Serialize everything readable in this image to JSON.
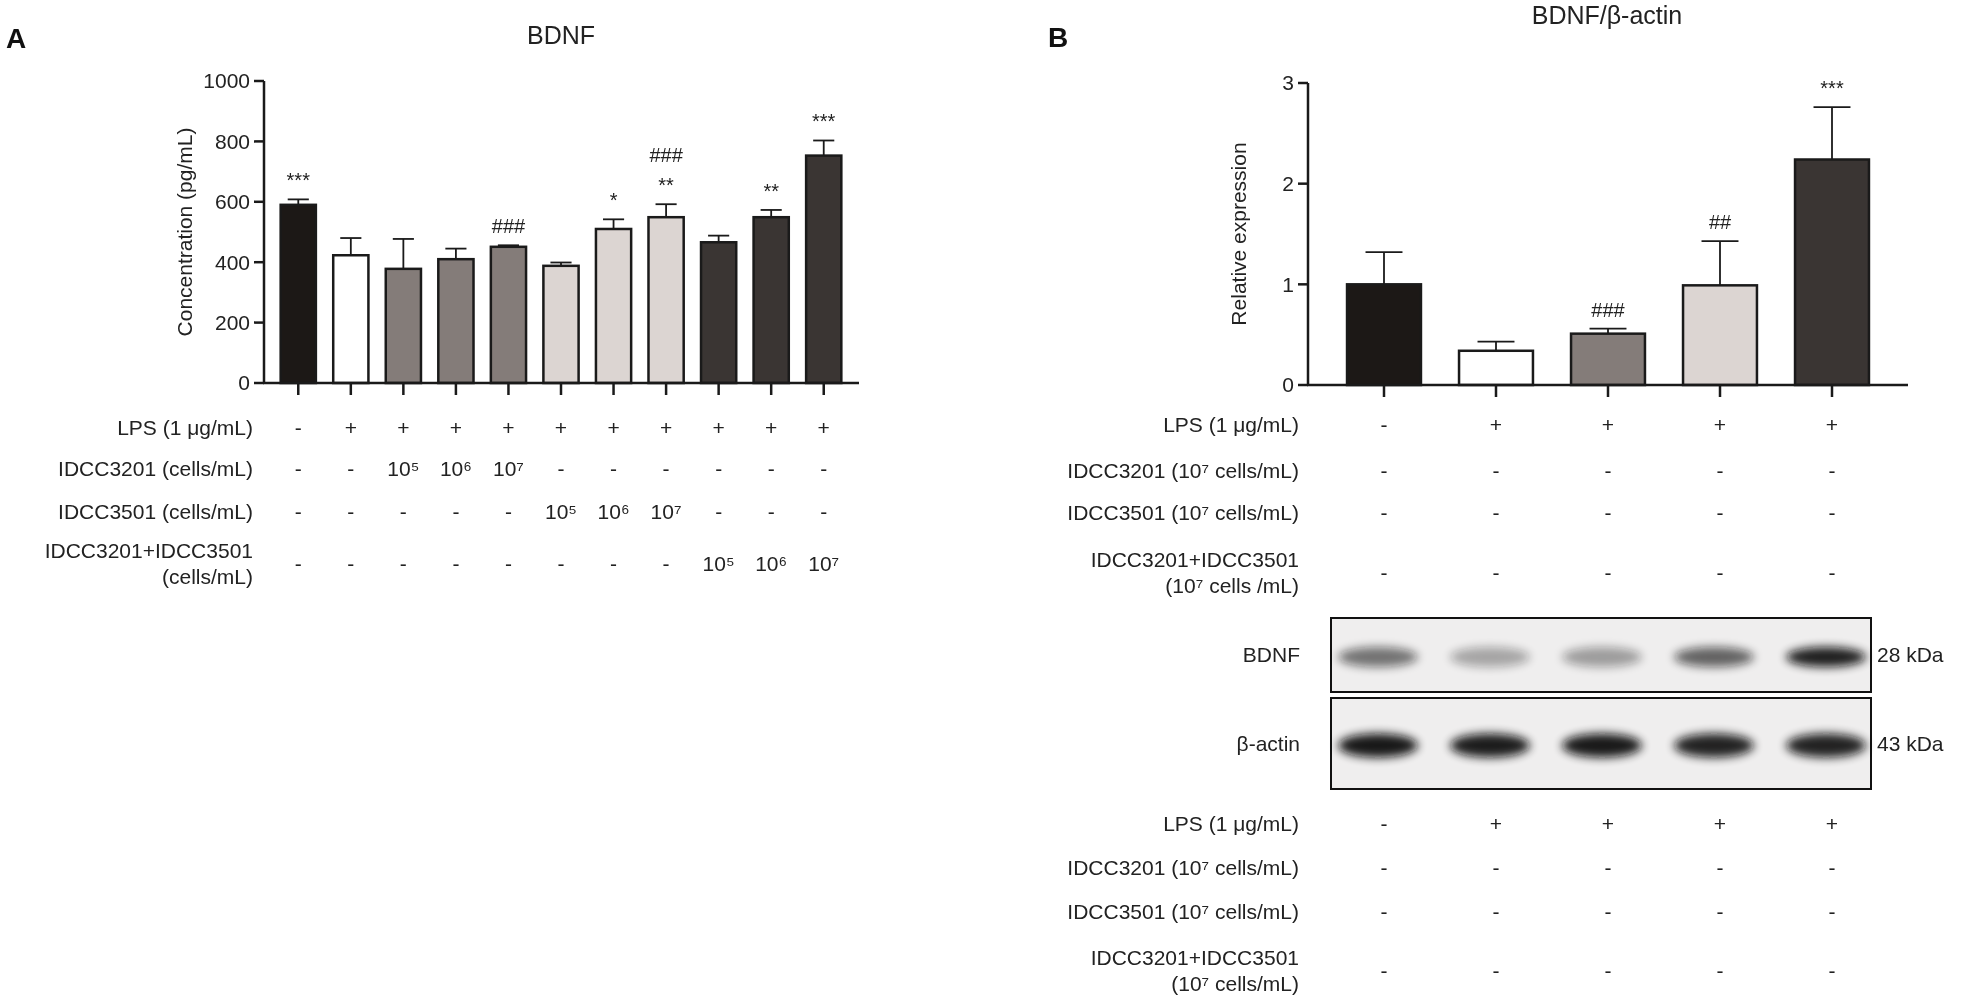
{
  "chart_data": [
    {
      "type": "bar",
      "title": "BDNF",
      "ylabel": "Concentration (pg/mL)",
      "categories": [
        null,
        null,
        null,
        null,
        null,
        null,
        null,
        null,
        null,
        null,
        null
      ],
      "values": [
        590,
        423,
        378,
        410,
        451,
        388,
        510,
        549,
        466,
        549,
        753
      ],
      "errors": [
        18,
        57,
        99,
        35,
        5,
        11,
        32,
        43,
        22,
        24,
        50
      ],
      "colors": [
        "#1c1816",
        "#ffffff",
        "#847c79",
        "#847c79",
        "#847c79",
        "#dcd5d2",
        "#dcd5d2",
        "#dcd5d2",
        "#3a3533",
        "#3a3533",
        "#3a3533"
      ],
      "ylim": [
        0,
        1000
      ],
      "yticks": [
        0,
        200,
        400,
        600,
        800,
        1000
      ],
      "value_labels": [
        "***",
        null,
        null,
        null,
        "###",
        null,
        "*",
        "###\n**",
        null,
        "**",
        "***"
      ],
      "annotations": [
        "A",
        "LPS (1 μg/mL)",
        "-",
        "+",
        "+",
        "+",
        "+",
        "+",
        "+",
        "+",
        "+",
        "+",
        "+",
        "IDCC3201 (cells/mL)",
        "-",
        "-",
        "10⁵",
        "10⁶",
        "10⁷",
        "-",
        "-",
        "-",
        "-",
        "-",
        "-",
        "IDCC3501 (cells/mL)",
        "-",
        "-",
        "-",
        "-",
        "-",
        "10⁵",
        "10⁶",
        "10⁷",
        "-",
        "-",
        "-",
        "IDCC3201+IDCC3501\n(cells/mL)",
        "-",
        "-",
        "-",
        "-",
        "-",
        "-",
        "-",
        "-",
        "10⁵",
        "10⁶",
        "10⁷"
      ]
    },
    {
      "type": "bar",
      "title": "BDNF/β-actin",
      "ylabel": "Relative expression",
      "categories": [
        null,
        null,
        null,
        null,
        null
      ],
      "values": [
        1.0,
        0.34,
        0.51,
        0.99,
        2.24
      ],
      "errors": [
        0.32,
        0.09,
        0.05,
        0.44,
        0.52
      ],
      "colors": [
        "#1c1816",
        "#ffffff",
        "#847c79",
        "#dcd5d2",
        "#3a3533"
      ],
      "ylim": [
        0,
        3
      ],
      "yticks": [
        0,
        1,
        2,
        3
      ],
      "value_labels": [
        null,
        null,
        "###",
        "##",
        "***"
      ],
      "annotations": [
        "B",
        "LPS (1 μg/mL)",
        "-",
        "+",
        "+",
        "+",
        "+",
        "IDCC3201 (10⁷ cells/mL)",
        "-",
        "-",
        "-",
        "-",
        "-",
        "IDCC3501 (10⁷ cells/mL)",
        "-",
        "-",
        "-",
        "-",
        "-",
        "IDCC3201+IDCC3501\n(10⁷ cells /mL)",
        "-",
        "-",
        "-",
        "-",
        "-",
        "BDNF",
        "28 kDa",
        "β-actin",
        "43 kDa",
        "LPS (1 μg/mL)",
        "-",
        "+",
        "+",
        "+",
        "+",
        "IDCC3201 (10⁷ cells/mL)",
        "-",
        "-",
        "-",
        "-",
        "-",
        "IDCC3501 (10⁷ cells/mL)",
        "-",
        "-",
        "-",
        "-",
        "-",
        "IDCC3201+IDCC3501\n(10⁷ cells/mL)",
        "-",
        "-",
        "-",
        "-",
        "-"
      ]
    }
  ]
}
